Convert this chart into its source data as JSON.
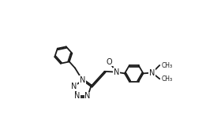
{
  "background_color": "#ffffff",
  "figsize": [
    2.8,
    1.73
  ],
  "dpi": 100,
  "bond_color": "#1a1a1a",
  "bond_lw": 1.3,
  "text_color": "#1a1a1a",
  "font_size": 7.0,
  "xlim": [
    0,
    1
  ],
  "ylim": [
    0,
    1
  ]
}
